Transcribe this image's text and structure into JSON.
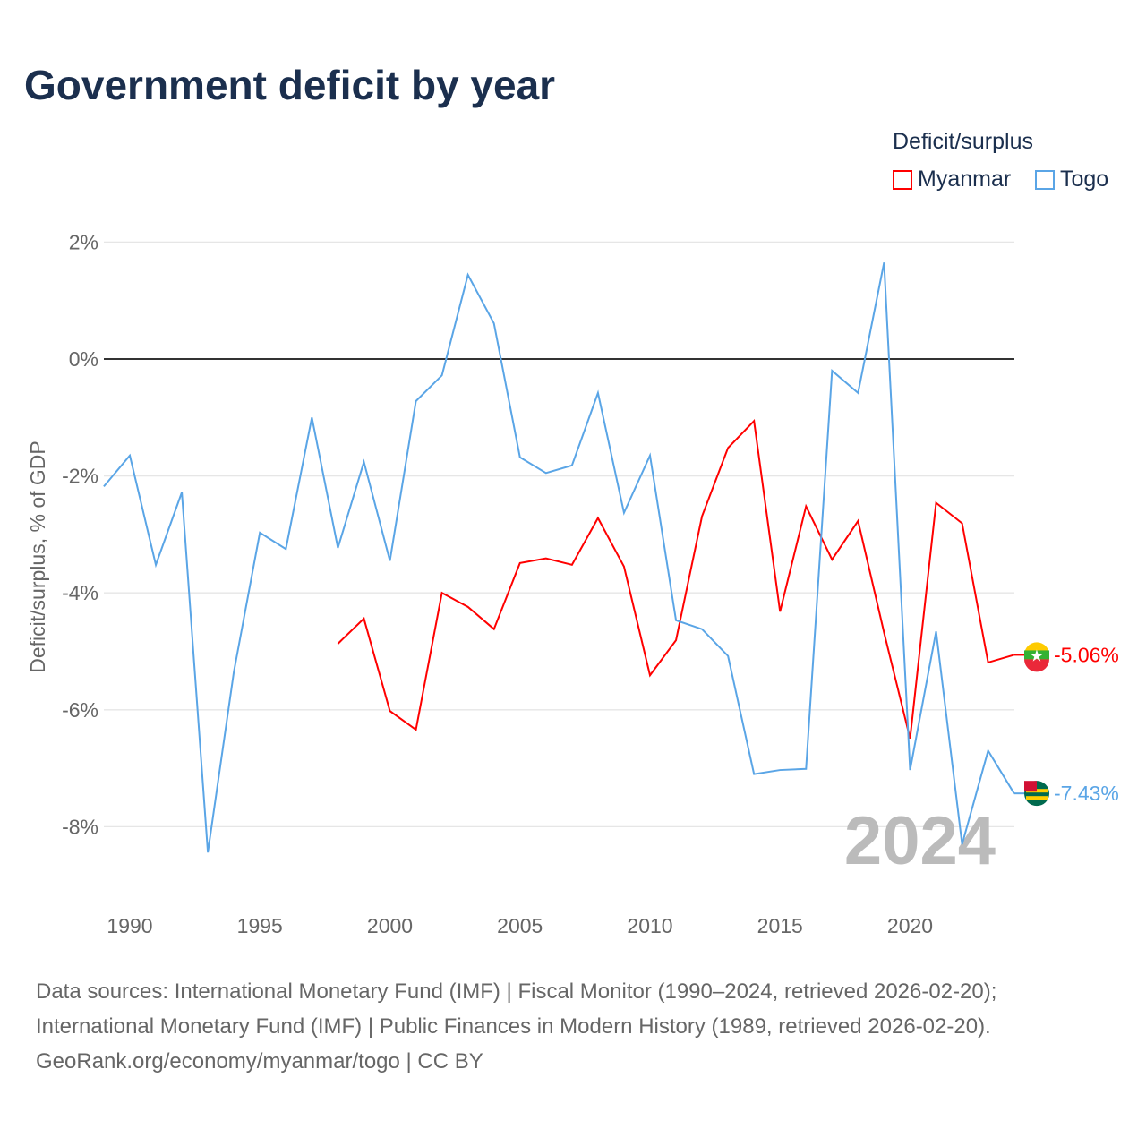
{
  "chart_data": {
    "type": "line",
    "title": "Government deficit by year",
    "ylabel": "Deficit/surplus, % of GDP",
    "xlabel": "",
    "xlim": [
      1989,
      2024
    ],
    "ylim": [
      -9,
      2.5
    ],
    "x_ticks": [
      "1990",
      "1995",
      "2000",
      "2005",
      "2010",
      "2015",
      "2020"
    ],
    "y_ticks": [
      {
        "v": 2,
        "label": "2%"
      },
      {
        "v": 0,
        "label": "0%"
      },
      {
        "v": -2,
        "label": "-2%"
      },
      {
        "v": -4,
        "label": "-4%"
      },
      {
        "v": -6,
        "label": "-6%"
      },
      {
        "v": -8,
        "label": "-8%"
      }
    ],
    "legend_title": "Deficit/surplus",
    "legend_position": "top-right",
    "year_label": "2024",
    "series": [
      {
        "name": "Myanmar",
        "color": "#ff0000",
        "end_label": "-5.06%",
        "x_start": 1998,
        "values": [
          -4.87,
          -4.44,
          -6.02,
          -6.34,
          -4.0,
          -4.24,
          -4.62,
          -3.49,
          -3.41,
          -3.52,
          -2.72,
          -3.55,
          -5.41,
          -4.81,
          -2.69,
          -1.52,
          -1.06,
          -4.32,
          -2.52,
          -3.43,
          -2.77,
          -4.68,
          -6.49,
          -2.46,
          -2.81,
          -5.19,
          -5.06
        ]
      },
      {
        "name": "Togo",
        "color": "#5aa5e6",
        "end_label": "-7.43%",
        "x_start": 1989,
        "values": [
          -2.18,
          -1.65,
          -3.52,
          -2.28,
          -8.44,
          -5.35,
          -2.97,
          -3.25,
          -1.0,
          -3.23,
          -1.76,
          -3.45,
          -0.72,
          -0.28,
          1.44,
          0.61,
          -1.68,
          -1.95,
          -1.82,
          -0.58,
          -2.63,
          -1.65,
          -4.47,
          -4.62,
          -5.08,
          -7.1,
          -7.03,
          -7.01,
          -0.2,
          -0.58,
          1.65,
          -7.03,
          -4.66,
          -8.3,
          -6.7,
          -7.43
        ]
      }
    ]
  },
  "sources": [
    "Data sources: International Monetary Fund (IMF) | Fiscal Monitor (1990–2024, retrieved 2026-02-20);",
    "International Monetary Fund (IMF) | Public Finances in Modern History (1989, retrieved 2026-02-20).",
    "GeoRank.org/economy/myanmar/togo | CC BY"
  ]
}
